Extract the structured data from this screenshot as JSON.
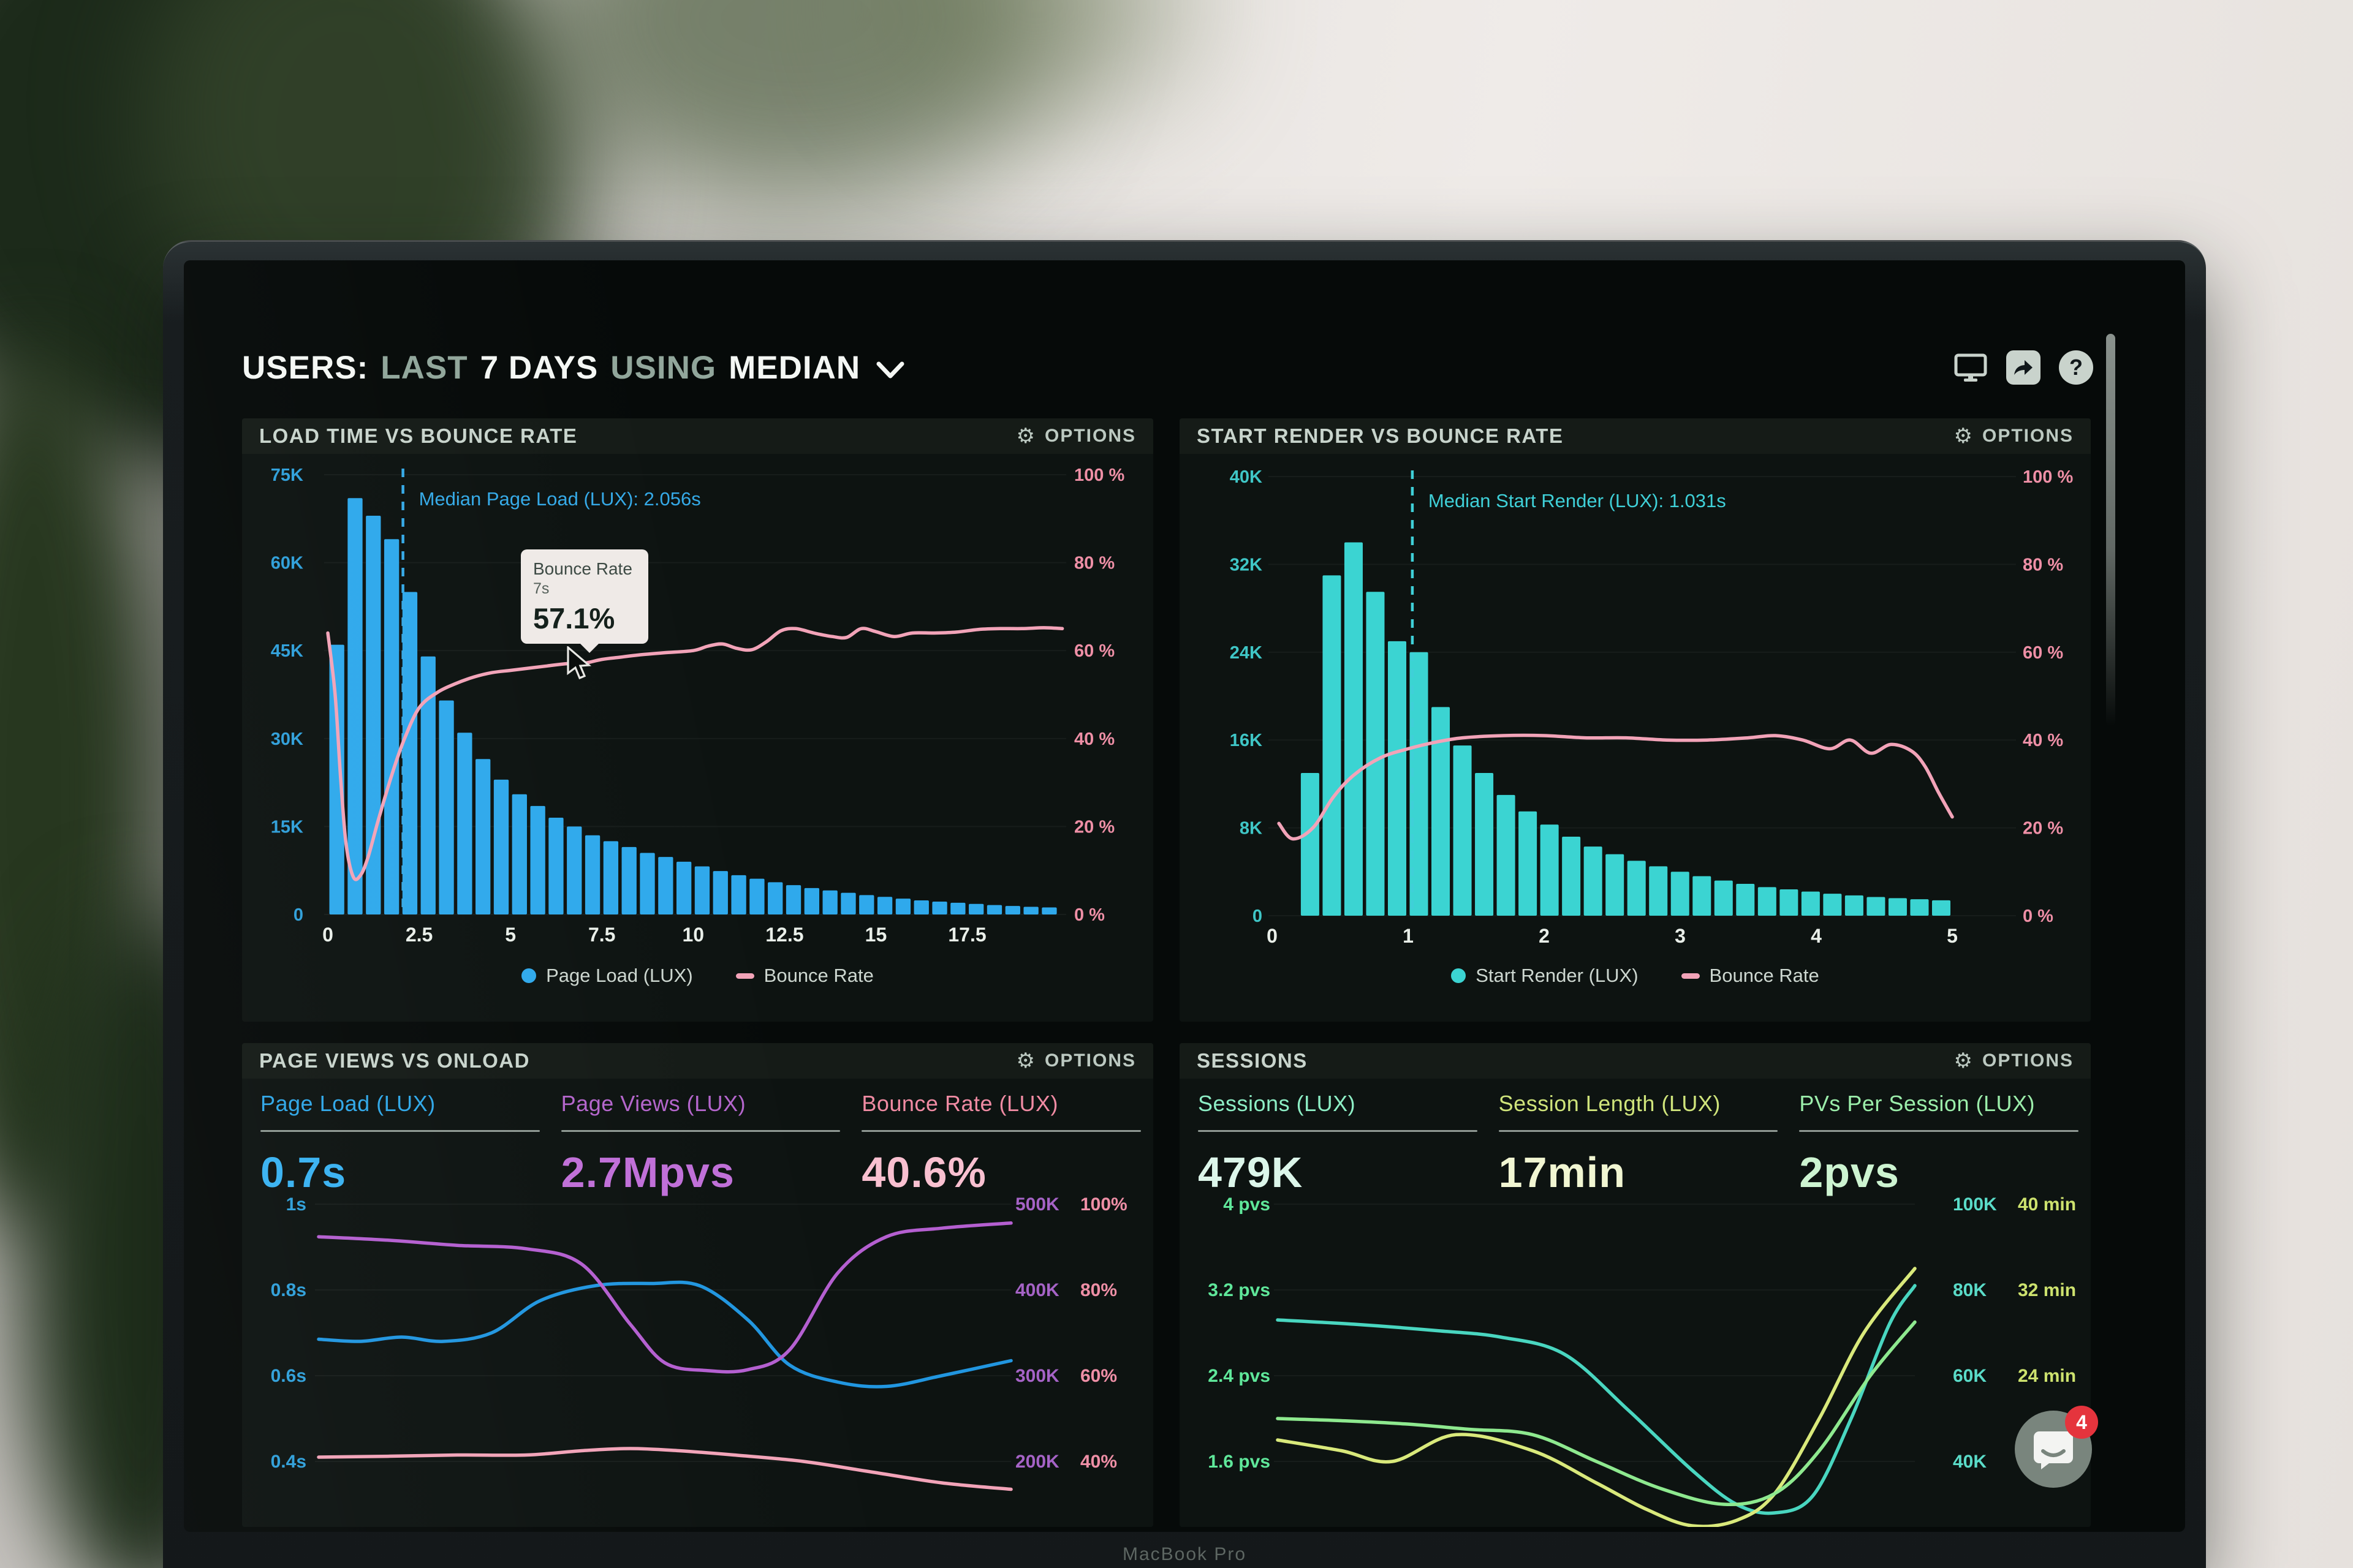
{
  "header": {
    "segments": [
      {
        "text": "USERS:",
        "muted": false
      },
      {
        "text": "LAST",
        "muted": true
      },
      {
        "text": "7 DAYS",
        "muted": false
      },
      {
        "text": "USING",
        "muted": true
      },
      {
        "text": "MEDIAN",
        "muted": false
      }
    ]
  },
  "panels": {
    "load_time": {
      "title": "LOAD TIME VS BOUNCE RATE",
      "options": "OPTIONS",
      "tooltip": {
        "series": "Bounce Rate",
        "x": "7s",
        "value": "57.1%"
      }
    },
    "start_render": {
      "title": "START RENDER VS BOUNCE RATE",
      "options": "OPTIONS"
    },
    "page_views": {
      "title": "PAGE VIEWS VS ONLOAD",
      "options": "OPTIONS",
      "metrics": [
        {
          "label": "Page Load (LUX)",
          "value": "0.7s",
          "label_color": "#2fa7e8",
          "value_color": "#39b2f2"
        },
        {
          "label": "Page Views (LUX)",
          "value": "2.7Mpvs",
          "label_color": "#b465cc",
          "value_color": "#c06fd8"
        },
        {
          "label": "Bounce Rate (LUX)",
          "value": "40.6%",
          "label_color": "#f08ba3",
          "value_color": "#f9c0d0"
        }
      ]
    },
    "sessions": {
      "title": "SESSIONS",
      "options": "OPTIONS",
      "metrics": [
        {
          "label": "Sessions (LUX)",
          "value": "479K",
          "label_color": "#8deec5",
          "value_color": "#dcf6ea"
        },
        {
          "label": "Session Length (LUX)",
          "value": "17min",
          "label_color": "#cfe47b",
          "value_color": "#f1f6d2"
        },
        {
          "label": "PVs Per Session (LUX)",
          "value": "2pvs",
          "label_color": "#9bedaa",
          "value_color": "#cdf4d1"
        }
      ]
    }
  },
  "chat": {
    "badge": "4"
  },
  "laptop": {
    "brand": "MacBook Pro"
  },
  "chart_data": [
    {
      "id": "load-time-vs-bounce-rate",
      "type": "bar+line",
      "title": "LOAD TIME VS BOUNCE RATE",
      "x_unit": "seconds",
      "x_ticks": [
        "0",
        "2.5",
        "5",
        "7.5",
        "10",
        "12.5",
        "15",
        "17.5"
      ],
      "x_tick_values": [
        0,
        2.5,
        5,
        7.5,
        10,
        12.5,
        15,
        17.5
      ],
      "x_range": [
        0,
        20.2
      ],
      "left_axis": {
        "ticks": [
          "75K",
          "60K",
          "45K",
          "30K",
          "15K",
          "0"
        ],
        "max_k": 75,
        "color": "#2f9fd9"
      },
      "right_axis": {
        "ticks": [
          "100 %",
          "80 %",
          "60 %",
          "40 %",
          "20 %",
          "0 %"
        ],
        "max": 100,
        "color": "#ee8fa6"
      },
      "bars": {
        "name": "Page Load (LUX)",
        "color": "#2fa9ec",
        "bin_start": 0,
        "bin_width": 0.5,
        "values_k": [
          46,
          71,
          68,
          64,
          55,
          44,
          36.5,
          31,
          26.5,
          23,
          20.5,
          18.5,
          16.5,
          15,
          13.5,
          12.5,
          11.5,
          10.5,
          9.8,
          9,
          8.2,
          7.4,
          6.7,
          6.1,
          5.5,
          5,
          4.5,
          4.1,
          3.7,
          3.3,
          3,
          2.7,
          2.4,
          2.2,
          2,
          1.8,
          1.6,
          1.45,
          1.3,
          1.2
        ]
      },
      "line": {
        "name": "Bounce Rate",
        "color": "#f2a3b8",
        "points": [
          [
            0,
            64
          ],
          [
            0.2,
            50
          ],
          [
            0.35,
            31
          ],
          [
            0.5,
            16
          ],
          [
            0.7,
            8.5
          ],
          [
            0.9,
            9
          ],
          [
            1.1,
            13
          ],
          [
            1.4,
            22
          ],
          [
            1.8,
            33
          ],
          [
            2.1,
            40
          ],
          [
            2.5,
            47
          ],
          [
            3,
            50.5
          ],
          [
            3.5,
            52.5
          ],
          [
            4,
            54
          ],
          [
            4.5,
            55
          ],
          [
            5,
            55.5
          ],
          [
            5.5,
            56
          ],
          [
            6,
            56.5
          ],
          [
            6.5,
            57
          ],
          [
            7,
            57.1
          ],
          [
            7.5,
            58
          ],
          [
            8,
            58.5
          ],
          [
            8.5,
            59
          ],
          [
            9.2,
            59.5
          ],
          [
            10,
            60
          ],
          [
            10.4,
            61
          ],
          [
            10.8,
            61.5
          ],
          [
            11.2,
            60.5
          ],
          [
            11.6,
            60.2
          ],
          [
            12,
            62
          ],
          [
            12.4,
            64.5
          ],
          [
            12.8,
            65
          ],
          [
            13.3,
            64
          ],
          [
            13.8,
            63.2
          ],
          [
            14.2,
            63
          ],
          [
            14.6,
            65
          ],
          [
            15,
            64.3
          ],
          [
            15.5,
            63.2
          ],
          [
            16,
            64
          ],
          [
            16.6,
            64
          ],
          [
            17.2,
            64.2
          ],
          [
            17.8,
            64.8
          ],
          [
            18.4,
            65
          ],
          [
            19,
            65
          ],
          [
            19.6,
            65.2
          ],
          [
            20.1,
            65
          ]
        ]
      },
      "median": {
        "x": 2.056,
        "label": "Median Page Load (LUX): 2.056s",
        "color": "#35aae8"
      },
      "tooltip": {
        "series": "Bounce Rate",
        "x": "7s",
        "value": "57.1%"
      }
    },
    {
      "id": "start-render-vs-bounce-rate",
      "type": "bar+line",
      "title": "START RENDER VS BOUNCE RATE",
      "x_unit": "seconds",
      "x_ticks": [
        "0",
        "1",
        "2",
        "3",
        "4",
        "5"
      ],
      "x_tick_values": [
        0,
        1,
        2,
        3,
        4,
        5
      ],
      "x_range": [
        0,
        5.45
      ],
      "left_axis": {
        "ticks": [
          "40K",
          "32K",
          "24K",
          "16K",
          "8K",
          "0"
        ],
        "max_k": 40,
        "color": "#3fc6c6"
      },
      "right_axis": {
        "ticks": [
          "100 %",
          "80 %",
          "60 %",
          "40 %",
          "20 %",
          "0 %"
        ],
        "max": 100,
        "color": "#ee8fa6"
      },
      "bars": {
        "name": "Start Render (LUX)",
        "color": "#3bd4d2",
        "bin_start": 0.2,
        "bin_width": 0.16,
        "values_k": [
          13,
          31,
          34,
          29.5,
          25,
          24,
          19,
          15.5,
          13,
          11,
          9.5,
          8.3,
          7.2,
          6.3,
          5.6,
          5,
          4.5,
          4,
          3.6,
          3.2,
          2.9,
          2.6,
          2.4,
          2.2,
          2,
          1.85,
          1.7,
          1.6,
          1.5,
          1.4
        ]
      },
      "line": {
        "name": "Bounce Rate",
        "color": "#f2a3b8",
        "points": [
          [
            0.05,
            21
          ],
          [
            0.15,
            17.5
          ],
          [
            0.3,
            20
          ],
          [
            0.45,
            27
          ],
          [
            0.6,
            32
          ],
          [
            0.8,
            36
          ],
          [
            1,
            38
          ],
          [
            1.2,
            39.5
          ],
          [
            1.4,
            40.5
          ],
          [
            1.7,
            41
          ],
          [
            2,
            41
          ],
          [
            2.3,
            40.5
          ],
          [
            2.6,
            40.5
          ],
          [
            2.9,
            40
          ],
          [
            3.2,
            40
          ],
          [
            3.5,
            40.5
          ],
          [
            3.7,
            41
          ],
          [
            3.9,
            40
          ],
          [
            4.1,
            38
          ],
          [
            4.25,
            40
          ],
          [
            4.4,
            37
          ],
          [
            4.55,
            39
          ],
          [
            4.7,
            37.5
          ],
          [
            4.8,
            34
          ],
          [
            4.9,
            28
          ],
          [
            5,
            22.5
          ]
        ]
      },
      "median": {
        "x": 1.031,
        "label": "Median Start Render (LUX): 1.031s",
        "color": "#3fd0d8"
      }
    },
    {
      "id": "page-views-vs-onload",
      "type": "line",
      "title": "PAGE VIEWS VS ONLOAD",
      "left_axis": {
        "ticks": [
          "1s",
          "0.8s",
          "0.6s",
          "0.4s"
        ],
        "color": "#2f9fd9"
      },
      "right_axis_1": {
        "ticks": [
          "500K",
          "400K",
          "300K",
          "200K"
        ],
        "color": "#a563c6"
      },
      "right_axis_2": {
        "ticks": [
          "100%",
          "80%",
          "60%",
          "40%"
        ],
        "color": "#ee8fa6"
      },
      "axis_scales": {
        "s": [
          1,
          0.4
        ],
        "k": [
          500,
          200
        ],
        "pct": [
          100,
          40
        ]
      },
      "series": [
        {
          "name": "Page Load (LUX)",
          "axis": "s",
          "color": "#2196e0",
          "points": [
            [
              0,
              0.685
            ],
            [
              0.06,
              0.68
            ],
            [
              0.12,
              0.69
            ],
            [
              0.18,
              0.68
            ],
            [
              0.25,
              0.7
            ],
            [
              0.32,
              0.775
            ],
            [
              0.4,
              0.81
            ],
            [
              0.48,
              0.815
            ],
            [
              0.55,
              0.81
            ],
            [
              0.62,
              0.73
            ],
            [
              0.68,
              0.625
            ],
            [
              0.75,
              0.585
            ],
            [
              0.82,
              0.575
            ],
            [
              0.9,
              0.6
            ],
            [
              1,
              0.635
            ]
          ]
        },
        {
          "name": "Page Views (LUX)",
          "axis": "k",
          "color": "#b45fd0",
          "points": [
            [
              0,
              462
            ],
            [
              0.1,
              458
            ],
            [
              0.2,
              452
            ],
            [
              0.3,
              448
            ],
            [
              0.38,
              430
            ],
            [
              0.45,
              360
            ],
            [
              0.5,
              315
            ],
            [
              0.56,
              306
            ],
            [
              0.62,
              307
            ],
            [
              0.68,
              330
            ],
            [
              0.75,
              420
            ],
            [
              0.82,
              462
            ],
            [
              0.9,
              472
            ],
            [
              1,
              478
            ]
          ]
        },
        {
          "name": "Bounce Rate (LUX)",
          "axis": "pct",
          "color": "#f2a3b8",
          "points": [
            [
              0,
              41
            ],
            [
              0.1,
              41.2
            ],
            [
              0.2,
              41.5
            ],
            [
              0.3,
              41.5
            ],
            [
              0.38,
              42.5
            ],
            [
              0.45,
              43
            ],
            [
              0.52,
              42.5
            ],
            [
              0.6,
              41.5
            ],
            [
              0.7,
              40
            ],
            [
              0.8,
              37.5
            ],
            [
              0.9,
              35
            ],
            [
              1,
              33.5
            ]
          ]
        }
      ]
    },
    {
      "id": "sessions",
      "type": "line",
      "title": "SESSIONS",
      "left_axis": {
        "ticks": [
          "4 pvs",
          "3.2 pvs",
          "2.4 pvs",
          "1.6 pvs"
        ],
        "color": "#5fe79a"
      },
      "right_axis_1": {
        "ticks": [
          "100K",
          "80K",
          "60K",
          "40K"
        ],
        "color": "#5adbc8"
      },
      "right_axis_2": {
        "ticks": [
          "40 min",
          "32 min",
          "24 min"
        ],
        "color": "#cde26e"
      },
      "axis_scales": {
        "pvs": [
          4,
          1.6
        ],
        "k": [
          100,
          40
        ],
        "min": [
          40,
          16
        ]
      },
      "series": [
        {
          "name": "Sessions (LUX)",
          "axis": "k",
          "color": "#49d6c0",
          "points": [
            [
              0,
              73
            ],
            [
              0.12,
              72
            ],
            [
              0.25,
              70.5
            ],
            [
              0.35,
              69
            ],
            [
              0.45,
              65
            ],
            [
              0.55,
              52
            ],
            [
              0.65,
              38
            ],
            [
              0.72,
              30
            ],
            [
              0.78,
              28
            ],
            [
              0.84,
              32
            ],
            [
              0.9,
              50
            ],
            [
              0.96,
              72
            ],
            [
              1,
              81
            ]
          ]
        },
        {
          "name": "Session Length (LUX)",
          "axis": "min",
          "color": "#d9e97b",
          "points": [
            [
              0,
              18
            ],
            [
              0.1,
              17
            ],
            [
              0.18,
              16
            ],
            [
              0.28,
              18.5
            ],
            [
              0.4,
              17
            ],
            [
              0.5,
              14
            ],
            [
              0.58,
              11.5
            ],
            [
              0.65,
              10
            ],
            [
              0.72,
              10.5
            ],
            [
              0.78,
              13
            ],
            [
              0.85,
              20
            ],
            [
              0.92,
              28
            ],
            [
              1,
              34
            ]
          ]
        },
        {
          "name": "PVs Per Session (LUX)",
          "axis": "pvs",
          "color": "#8ee98f",
          "points": [
            [
              0,
              2
            ],
            [
              0.1,
              1.98
            ],
            [
              0.2,
              1.95
            ],
            [
              0.3,
              1.9
            ],
            [
              0.4,
              1.85
            ],
            [
              0.5,
              1.6
            ],
            [
              0.6,
              1.35
            ],
            [
              0.7,
              1.2
            ],
            [
              0.78,
              1.3
            ],
            [
              0.85,
              1.7
            ],
            [
              0.93,
              2.4
            ],
            [
              1,
              2.9
            ]
          ]
        }
      ]
    }
  ]
}
